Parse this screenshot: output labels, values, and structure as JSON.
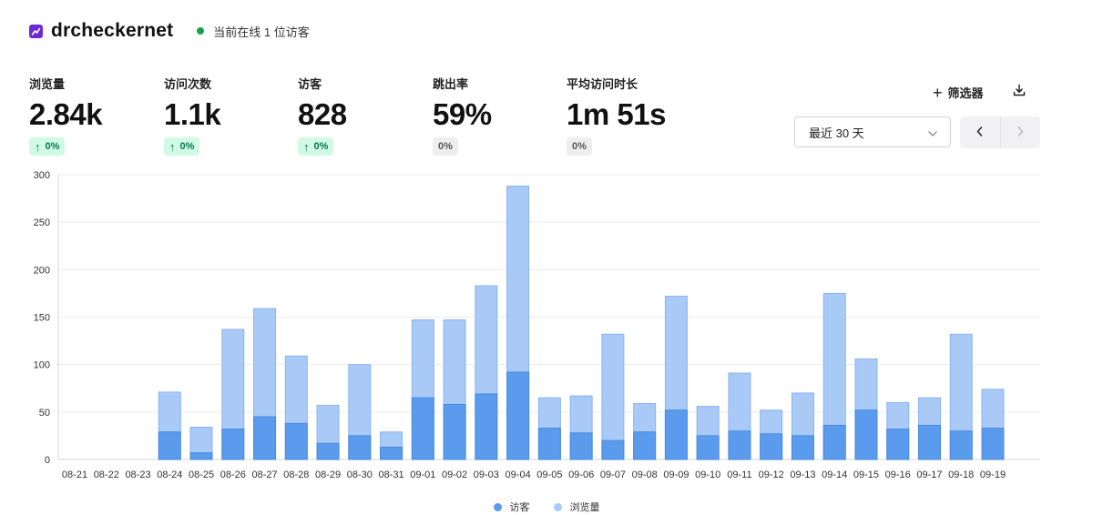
{
  "site": {
    "name": "drcheckernet",
    "online_text": "当前在线 1 位访客"
  },
  "metrics": [
    {
      "label": "浏览量",
      "value": "2.84k",
      "change": "0%",
      "trend": "up"
    },
    {
      "label": "访问次数",
      "value": "1.1k",
      "change": "0%",
      "trend": "up"
    },
    {
      "label": "访客",
      "value": "828",
      "change": "0%",
      "trend": "up"
    },
    {
      "label": "跳出率",
      "value": "59%",
      "change": "0%",
      "trend": "flat"
    },
    {
      "label": "平均访问时长",
      "value": "1m 51s",
      "change": "0%",
      "trend": "flat"
    }
  ],
  "toolbar": {
    "filter_label": "筛选器",
    "range_label": "最近 30 天"
  },
  "colors": {
    "visitors": "#5b9bee",
    "pageviews": "#a9c9f7",
    "visitors_stroke": "#4a89dc",
    "pageviews_stroke": "#8ab4ee",
    "online": "#16a34a",
    "brand": "#6d28d9"
  },
  "chart_data": {
    "type": "bar",
    "stacked": false,
    "categories": [
      "08-21",
      "08-22",
      "08-23",
      "08-24",
      "08-25",
      "08-26",
      "08-27",
      "08-28",
      "08-29",
      "08-30",
      "08-31",
      "09-01",
      "09-02",
      "09-03",
      "09-04",
      "09-05",
      "09-06",
      "09-07",
      "09-08",
      "09-09",
      "09-10",
      "09-11",
      "09-12",
      "09-13",
      "09-14",
      "09-15",
      "09-16",
      "09-17",
      "09-18",
      "09-19"
    ],
    "series": [
      {
        "name": "访客",
        "values": [
          0,
          0,
          0,
          29,
          7,
          32,
          45,
          38,
          17,
          25,
          13,
          65,
          58,
          69,
          92,
          33,
          28,
          20,
          29,
          52,
          25,
          30,
          27,
          25,
          36,
          52,
          32,
          36,
          30,
          33
        ]
      },
      {
        "name": "浏览量",
        "values": [
          0,
          0,
          0,
          71,
          34,
          137,
          159,
          109,
          57,
          100,
          29,
          147,
          147,
          183,
          288,
          65,
          67,
          132,
          59,
          172,
          56,
          91,
          52,
          70,
          175,
          106,
          60,
          65,
          132,
          74
        ]
      }
    ],
    "ylim": [
      0,
      300
    ],
    "yticks": [
      0,
      50,
      100,
      150,
      200,
      250,
      300
    ],
    "legend": "bottom-center"
  }
}
